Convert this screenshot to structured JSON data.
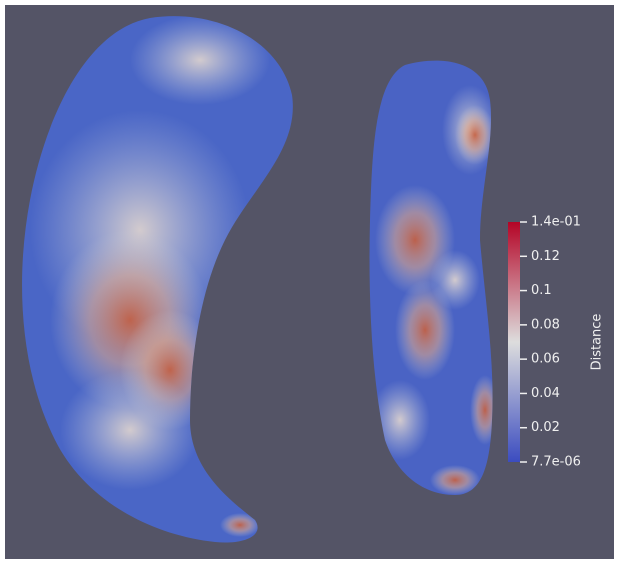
{
  "colorbar": {
    "title": "Distance",
    "range": [
      7.7e-06,
      0.14
    ],
    "ticks": [
      {
        "value": 0.14,
        "label": "1.4e-01"
      },
      0.12,
      0.1,
      0.08,
      0.06,
      0.04,
      0.02,
      {
        "value": 7.7e-06,
        "label": "7.7e-06"
      }
    ]
  }
}
